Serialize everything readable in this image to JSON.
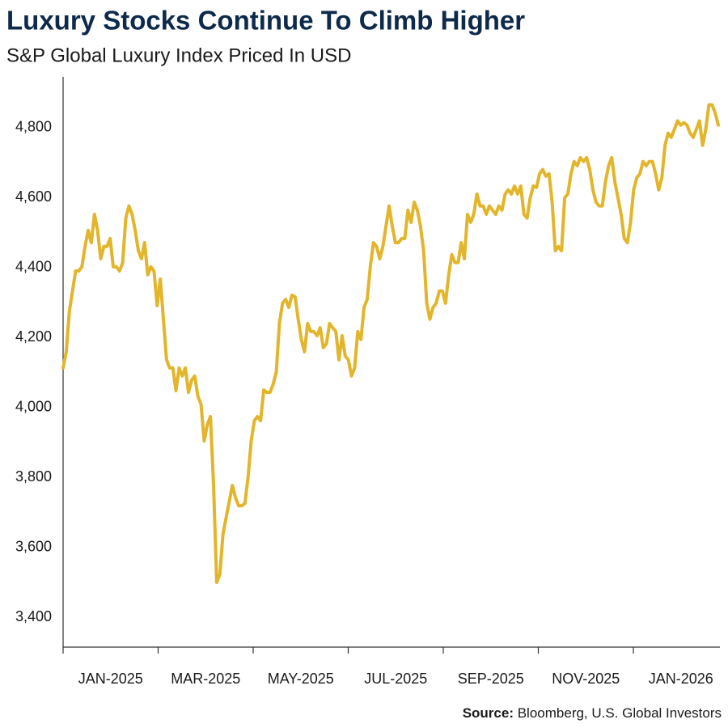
{
  "chart_data": {
    "type": "line",
    "title": "Luxury Stocks Continue To Climb Higher",
    "subtitle": "S&P Global Luxury Index Priced In USD",
    "source_label": "Source:",
    "source": "Bloomberg, U.S. Global Investors",
    "color": "#e3b52b",
    "x_labels": [
      "JAN-2025",
      "MAR-2025",
      "MAY-2025",
      "JUL-2025",
      "SEP-2025",
      "NOV-2025",
      "JAN-2026"
    ],
    "values": [
      4113,
      4159,
      4275,
      4333,
      4390,
      4390,
      4402,
      4460,
      4506,
      4471,
      4552,
      4506,
      4425,
      4460,
      4460,
      4483,
      4402,
      4402,
      4390,
      4414,
      4541,
      4576,
      4552,
      4506,
      4448,
      4425,
      4471,
      4379,
      4402,
      4390,
      4291,
      4367,
      4252,
      4136,
      4113,
      4113,
      4048,
      4113,
      4090,
      4113,
      4043,
      4078,
      4090,
      4032,
      4009,
      3904,
      3951,
      3974,
      3777,
      3500,
      3523,
      3638,
      3685,
      3731,
      3777,
      3742,
      3719,
      3719,
      3726,
      3800,
      3904,
      3962,
      3974,
      3962,
      4050,
      4043,
      4043,
      4066,
      4101,
      4240,
      4298,
      4309,
      4286,
      4321,
      4316,
      4252,
      4194,
      4159,
      4240,
      4217,
      4217,
      4205,
      4228,
      4171,
      4182,
      4240,
      4228,
      4217,
      4136,
      4205,
      4147,
      4136,
      4090,
      4113,
      4217,
      4194,
      4286,
      4309,
      4402,
      4471,
      4460,
      4425,
      4460,
      4518,
      4576,
      4518,
      4471,
      4471,
      4483,
      4483,
      4564,
      4529,
      4587,
      4564,
      4518,
      4448,
      4298,
      4252,
      4286,
      4298,
      4333,
      4333,
      4298,
      4379,
      4437,
      4414,
      4414,
      4471,
      4425,
      4552,
      4529,
      4552,
      4610,
      4576,
      4576,
      4552,
      4576,
      4564,
      4552,
      4576,
      4564,
      4610,
      4622,
      4610,
      4633,
      4610,
      4633,
      4552,
      4541,
      4599,
      4633,
      4629,
      4668,
      4680,
      4661,
      4668,
      4587,
      4448,
      4460,
      4448,
      4599,
      4610,
      4668,
      4703,
      4691,
      4714,
      4703,
      4714,
      4680,
      4622,
      4587,
      4576,
      4576,
      4645,
      4691,
      4714,
      4645,
      4599,
      4552,
      4483,
      4471,
      4529,
      4622,
      4657,
      4668,
      4703,
      4691,
      4703,
      4703,
      4668,
      4622,
      4657,
      4749,
      4784,
      4772,
      4795,
      4819,
      4807,
      4814,
      4807,
      4784,
      4772,
      4795,
      4819,
      4749,
      4795,
      4865,
      4865,
      4842,
      4807
    ],
    "ylim": [
      3315,
      4945
    ],
    "yticks": [
      {
        "value": 3400,
        "label": "3,400"
      },
      {
        "value": 3600,
        "label": "3,600"
      },
      {
        "value": 3800,
        "label": "3,800"
      },
      {
        "value": 4000,
        "label": "4,000"
      },
      {
        "value": 4200,
        "label": "4,200"
      },
      {
        "value": 4400,
        "label": "4,400"
      },
      {
        "value": 4600,
        "label": "4,600"
      },
      {
        "value": 4800,
        "label": "4,800"
      }
    ],
    "grid": false
  }
}
